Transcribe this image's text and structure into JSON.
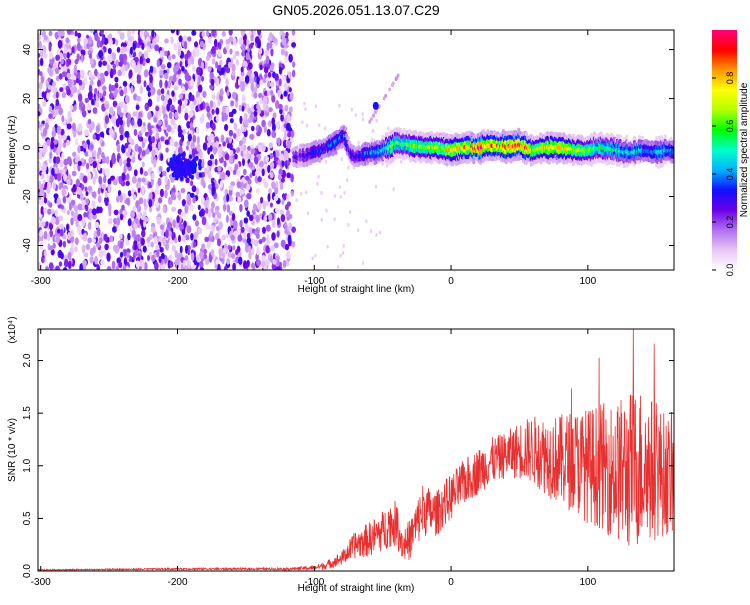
{
  "title": "GN05.2026.051.13.07.C29",
  "chart_data": [
    {
      "type": "heatmap",
      "title": "GN05.2026.051.13.07.C29",
      "xlabel": "Height of straight line (km)",
      "ylabel": "Frequency (Hz)",
      "xlim": [
        -302,
        163
      ],
      "ylim": [
        -50,
        48
      ],
      "xticks": [
        -300,
        -200,
        -100,
        0,
        100
      ],
      "yticks": [
        -40,
        -20,
        0,
        20,
        40
      ],
      "colorbar": {
        "label": "Normalized spectral amplitude",
        "range": [
          0,
          1
        ],
        "ticks": [
          "0.0",
          "0.2",
          "0.4",
          "0.6",
          "0.8"
        ],
        "colors": [
          "#ffffff",
          "#e8c6f5",
          "#b06ef0",
          "#6a00e8",
          "#1010ff",
          "#00b4ff",
          "#00ffc8",
          "#00ff00",
          "#b4ff00",
          "#ffff00",
          "#ff9600",
          "#ff0000",
          "#ff0078"
        ]
      },
      "noise_region_x": [
        -302,
        -115
      ],
      "ridge": {
        "x": [
          -115,
          -105,
          -95,
          -85,
          -78,
          -74,
          -70,
          -65,
          -60,
          -55,
          -50,
          -45,
          -40,
          -30,
          -20,
          -10,
          0,
          10,
          20,
          30,
          40,
          50,
          60,
          70,
          80,
          90,
          100,
          110,
          120,
          130,
          140,
          150,
          160,
          163
        ],
        "frequency": [
          -4,
          -3,
          -1,
          2,
          5,
          -2,
          -4,
          -3,
          -2,
          -2,
          -1,
          0,
          2,
          1,
          0,
          0,
          -1,
          0,
          0,
          1,
          0,
          1,
          -1,
          0,
          0,
          -1,
          -1,
          0,
          -1,
          -2,
          -1,
          -2,
          -1,
          -2
        ],
        "amplitude": [
          0.25,
          0.3,
          0.35,
          0.4,
          0.4,
          0.3,
          0.3,
          0.35,
          0.4,
          0.45,
          0.5,
          0.6,
          0.6,
          0.65,
          0.7,
          0.75,
          0.8,
          0.85,
          0.95,
          0.9,
          0.85,
          0.95,
          0.7,
          0.75,
          0.8,
          0.75,
          0.7,
          0.55,
          0.5,
          0.5,
          0.45,
          0.45,
          0.45,
          0.4
        ]
      }
    },
    {
      "type": "line",
      "xlabel": "Height of straight line (km)",
      "ylabel": "SNR (10 * v/v)",
      "y_multiplier": "(x10⁴)",
      "xlim": [
        -302,
        163
      ],
      "ylim": [
        0,
        2.3
      ],
      "xticks": [
        -300,
        -200,
        -100,
        0,
        100
      ],
      "yticks": [
        0.0,
        0.5,
        1.0,
        1.5,
        2.0
      ],
      "color": "#e83030",
      "series": [
        {
          "x": [
            -302,
            -250,
            -200,
            -150,
            -120,
            -100,
            -90,
            -80,
            -70,
            -60,
            -50,
            -45,
            -40,
            -35,
            -30,
            -25,
            -20,
            -15,
            -10,
            -5,
            0,
            10,
            20,
            30,
            40,
            50,
            60,
            70,
            80,
            90,
            100,
            110,
            120,
            130,
            140,
            150,
            160,
            163
          ],
          "values": [
            0.01,
            0.015,
            0.02,
            0.02,
            0.02,
            0.03,
            0.06,
            0.12,
            0.25,
            0.3,
            0.38,
            0.45,
            0.45,
            0.25,
            0.3,
            0.45,
            0.6,
            0.55,
            0.55,
            0.65,
            0.7,
            0.85,
            0.95,
            1.05,
            1.1,
            1.15,
            1.15,
            1.1,
            1.05,
            1.05,
            1.0,
            1.0,
            0.95,
            0.95,
            1.0,
            0.95,
            0.9,
            0.9
          ],
          "spread": [
            0.005,
            0.005,
            0.008,
            0.008,
            0.01,
            0.02,
            0.04,
            0.06,
            0.12,
            0.15,
            0.18,
            0.2,
            0.2,
            0.15,
            0.18,
            0.2,
            0.25,
            0.2,
            0.2,
            0.2,
            0.2,
            0.2,
            0.2,
            0.2,
            0.2,
            0.25,
            0.3,
            0.35,
            0.4,
            0.45,
            0.5,
            0.55,
            0.6,
            0.7,
            0.7,
            0.6,
            0.5,
            0.5
          ]
        }
      ]
    }
  ]
}
